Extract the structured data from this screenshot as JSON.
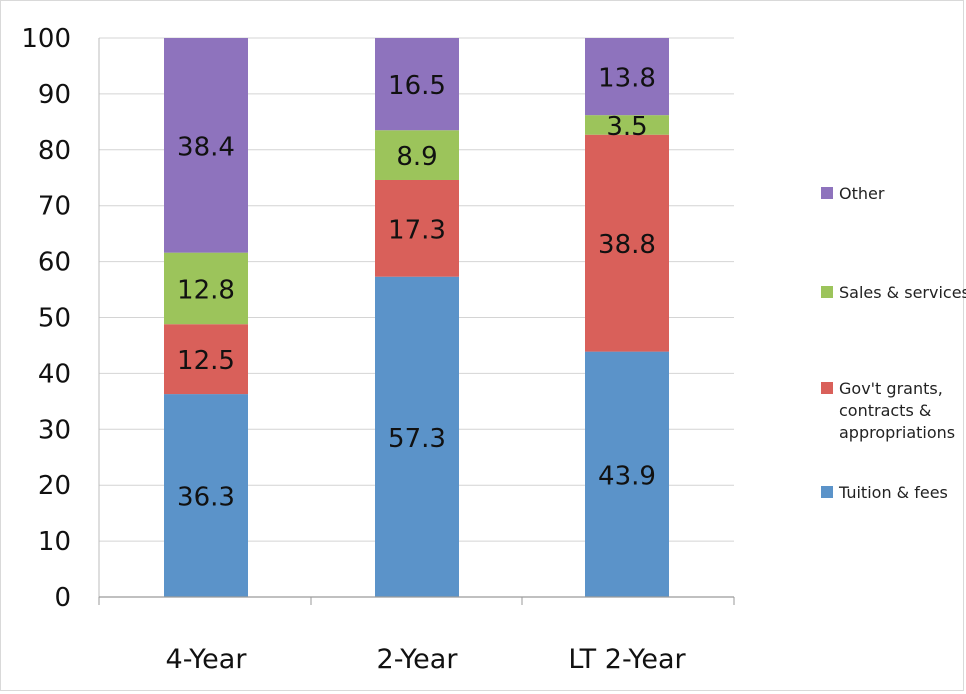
{
  "chart_data": {
    "type": "bar",
    "stacked": true,
    "title": "",
    "xlabel": "",
    "ylabel": "",
    "ylim": [
      0,
      100
    ],
    "yticks": [
      0,
      10,
      20,
      30,
      40,
      50,
      60,
      70,
      80,
      90,
      100
    ],
    "grid": true,
    "legend_position": "right",
    "categories": [
      "4-Year",
      "2-Year",
      "LT 2-Year"
    ],
    "series": [
      {
        "name": "Tuition & fees",
        "color": "#5b93c9",
        "values": [
          36.3,
          57.3,
          43.9
        ]
      },
      {
        "name": "Gov't grants, contracts & appropriations",
        "legend_lines": [
          "Gov't grants,",
          "contracts &",
          "appropriations"
        ],
        "color": "#d9605a",
        "values": [
          12.5,
          17.3,
          38.8
        ]
      },
      {
        "name": "Sales & services",
        "color": "#9cc45b",
        "values": [
          12.8,
          8.9,
          3.5
        ]
      },
      {
        "name": "Other",
        "color": "#8e73bd",
        "values": [
          38.4,
          16.5,
          13.8
        ]
      }
    ],
    "legend_order": [
      "Other",
      "Sales & services",
      "Gov't grants, contracts & appropriations",
      "Tuition & fees"
    ]
  }
}
